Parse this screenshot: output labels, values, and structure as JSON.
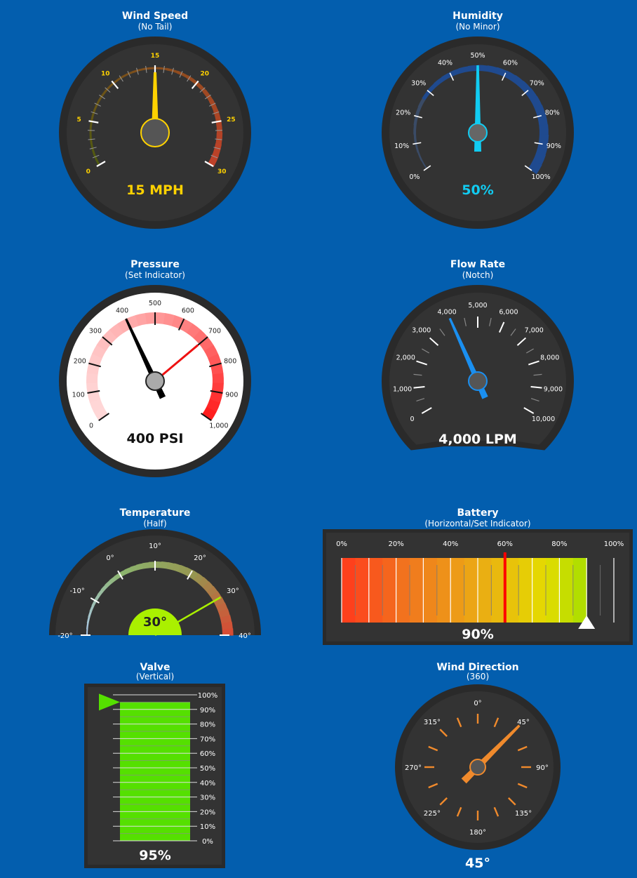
{
  "wind_speed": {
    "title": "Wind Speed",
    "subtitle": "(No Tail)",
    "value": 15,
    "readout": "15 MPH",
    "min": 0,
    "max": 30,
    "tick_labels": [
      "0",
      "5",
      "10",
      "15",
      "20",
      "25",
      "30"
    ],
    "colors": {
      "needle": "#ffd200",
      "label": "#ffd200",
      "band_low": "#4f5a10",
      "band_high": "#c2402a"
    }
  },
  "humidity": {
    "title": "Humidity",
    "subtitle": "(No Minor)",
    "value": 50,
    "readout": "50%",
    "min": 0,
    "max": 100,
    "tick_labels": [
      "0%",
      "10%",
      "20%",
      "30%",
      "40%",
      "50%",
      "60%",
      "70%",
      "80%",
      "90%",
      "100%"
    ],
    "colors": {
      "needle": "#11ccf2",
      "band": "#1f4a8f"
    }
  },
  "pressure": {
    "title": "Pressure",
    "subtitle": "(Set Indicator)",
    "value": 400,
    "set_value": 700,
    "readout": "400 PSI",
    "min": 0,
    "max": 1000,
    "tick_labels": [
      "0",
      "100",
      "200",
      "300",
      "400",
      "500",
      "600",
      "700",
      "800",
      "900",
      "1,000"
    ],
    "colors": {
      "needle": "#000000",
      "set_indicator": "#ee1111",
      "band": "#ff2020"
    }
  },
  "flow_rate": {
    "title": "Flow Rate",
    "subtitle": "(Notch)",
    "value": 4000,
    "readout": "4,000 LPM",
    "min": 0,
    "max": 10000,
    "tick_labels": [
      "0",
      "1,000",
      "2,000",
      "3,000",
      "4,000",
      "5,000",
      "6,000",
      "7,000",
      "8,000",
      "9,000",
      "10,000"
    ],
    "colors": {
      "needle": "#1a8ff0"
    }
  },
  "temperature": {
    "title": "Temperature",
    "subtitle": "(Half)",
    "value": 30,
    "readout": "30°",
    "min": -20,
    "max": 40,
    "tick_labels": [
      "-20°",
      "-10°",
      "0°",
      "10°",
      "20°",
      "30°",
      "40°"
    ],
    "colors": {
      "needle": "#aaf000",
      "hub": "#aaf000"
    }
  },
  "battery": {
    "title": "Battery",
    "subtitle": "(Horizontal/Set Indicator)",
    "value": 90,
    "set_value": 60,
    "readout": "90%",
    "tick_labels": [
      "0%",
      "20%",
      "40%",
      "60%",
      "80%",
      "100%"
    ],
    "colors": {
      "set_indicator": "#ff0000",
      "start": "#ff3a1c",
      "end": "#80e000"
    }
  },
  "valve": {
    "title": "Valve",
    "subtitle": "(Vertical)",
    "value": 95,
    "readout": "95%",
    "tick_labels": [
      "0%",
      "10%",
      "20%",
      "30%",
      "40%",
      "50%",
      "60%",
      "70%",
      "80%",
      "90%",
      "100%"
    ],
    "colors": {
      "fill": "#55e000",
      "pointer": "#55e000"
    }
  },
  "wind_direction": {
    "title": "Wind Direction",
    "subtitle": "(360)",
    "value": 45,
    "readout": "45°",
    "tick_labels": [
      "0°",
      "45°",
      "90°",
      "135°",
      "180°",
      "225°",
      "270°",
      "315°"
    ],
    "colors": {
      "needle": "#f08a2c",
      "ticks": "#f08a2c"
    }
  }
}
